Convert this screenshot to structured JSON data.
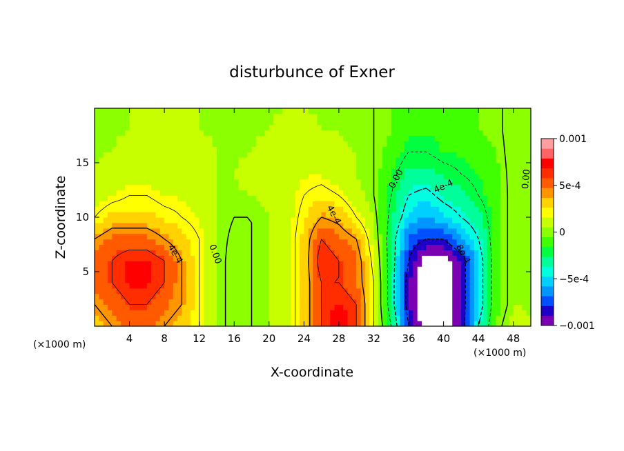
{
  "chart_data": {
    "type": "heatmap",
    "title": "disturbunce of Exner",
    "xlabel": "X-coordinate",
    "ylabel": "Z-coordinate",
    "xunit_left": "(×1000 m)",
    "xunit_right": "(×1000 m)",
    "xlim": [
      0,
      50
    ],
    "ylim": [
      0,
      20
    ],
    "xticks": [
      4,
      8,
      12,
      16,
      20,
      24,
      28,
      32,
      36,
      40,
      44,
      48
    ],
    "yticks": [
      5,
      10,
      15
    ],
    "colorbar": {
      "range": [
        -0.001,
        0.001
      ],
      "tick_values": [
        0.001,
        0.0005,
        0,
        -0.0005,
        -0.001
      ],
      "tick_labels": [
        "0.001",
        "5e-4",
        "0",
        "−5e-4",
        "−0.001"
      ],
      "colors": [
        "#7b00b4",
        "#1e00c8",
        "#0050ff",
        "#0096ff",
        "#00d0ff",
        "#00ffe0",
        "#00ff9a",
        "#00ff40",
        "#40ff00",
        "#8cff00",
        "#c8ff00",
        "#ffff00",
        "#ffd200",
        "#ff9600",
        "#ff5a00",
        "#ff2d00",
        "#ff0000",
        "#ff6464",
        "#ff9ea0"
      ]
    },
    "contour_labels": [
      {
        "text": "4e-4",
        "x": 9.2,
        "z": 6.6,
        "angle": 60
      },
      {
        "text": "0.00",
        "x": 13.8,
        "z": 6.6,
        "angle": 70
      },
      {
        "text": "4e-4",
        "x": 27.4,
        "z": 10.2,
        "angle": 62
      },
      {
        "text": "0.00",
        "x": 34.6,
        "z": 13.5,
        "angle": -62
      },
      {
        "text": "4e-4",
        "x": 40.0,
        "z": 12.8,
        "angle": -25
      },
      {
        "text": "8e-4",
        "x": 42.2,
        "z": 6.6,
        "angle": 62
      },
      {
        "text": "0.00",
        "x": 49.5,
        "z": 13.5,
        "angle": -85
      }
    ],
    "data": {
      "x": [
        0,
        2,
        4,
        6,
        8,
        10,
        12,
        14,
        16,
        18,
        20,
        22,
        24,
        26,
        28,
        30,
        32,
        34,
        36,
        38,
        40,
        42,
        44,
        46,
        48,
        50
      ],
      "z": [
        0,
        2,
        4,
        6,
        8,
        10,
        12,
        14,
        16,
        18,
        20
      ],
      "values_e4": [
        [
          3,
          4,
          5,
          5,
          4,
          3,
          2,
          0.5,
          -0.5,
          0,
          0.5,
          1,
          3,
          6,
          8,
          6,
          2,
          -2,
          -8,
          -11,
          -11,
          -9,
          -4,
          -0.5,
          1,
          0.5
        ],
        [
          4,
          5,
          6,
          6,
          5,
          4,
          2,
          0.5,
          -0.5,
          0,
          0.5,
          1,
          3,
          6,
          7,
          6,
          2,
          -3,
          -9,
          -11,
          -11,
          -9,
          -5,
          -1,
          0.5,
          0.5
        ],
        [
          5,
          6,
          7,
          7,
          6,
          4,
          2,
          0.5,
          -0.5,
          0,
          0.5,
          1,
          3,
          6,
          6,
          5,
          2,
          -3,
          -9,
          -11,
          -11,
          -9,
          -5,
          -1,
          0.5,
          0.5
        ],
        [
          5,
          6,
          7,
          7,
          6,
          4,
          2,
          0.5,
          -0.5,
          0,
          0.5,
          1,
          3,
          7,
          6,
          5,
          1.5,
          -3,
          -8,
          -11,
          -11,
          -9,
          -5,
          -1,
          0.5,
          0.5
        ],
        [
          4,
          5,
          5,
          5,
          4,
          3,
          2,
          0.5,
          -0.3,
          0,
          0.5,
          1,
          3,
          6,
          5,
          4,
          1,
          -3,
          -7,
          -8,
          -8,
          -6,
          -4,
          -1,
          0.5,
          0.5
        ],
        [
          2,
          3,
          3,
          3,
          2.5,
          2,
          1.5,
          0.5,
          0,
          0,
          0.5,
          1,
          2.5,
          4,
          3.5,
          2,
          0.5,
          -2.5,
          -5,
          -6,
          -5,
          -4,
          -3,
          -1,
          0.5,
          0.5
        ],
        [
          1,
          1.5,
          2,
          2,
          1.5,
          1.5,
          1,
          0.5,
          0.5,
          0.5,
          1,
          1,
          2,
          2.5,
          2,
          1,
          0,
          -2,
          -4,
          -4.5,
          -3.5,
          -3,
          -2,
          -1,
          0.5,
          0.5
        ],
        [
          0.5,
          1,
          1,
          1.2,
          1,
          1,
          0.8,
          0.5,
          0.5,
          0.8,
          1,
          1,
          1.5,
          1.5,
          1,
          0.5,
          0,
          -1.5,
          -3,
          -3,
          -2.5,
          -2,
          -1.5,
          -0.8,
          0.5,
          0.5
        ],
        [
          0.5,
          0.5,
          0.8,
          1,
          1,
          0.8,
          0.8,
          0.5,
          0.5,
          0.5,
          0.8,
          1,
          1,
          1,
          0.8,
          0.5,
          0,
          -1,
          -2,
          -2,
          -1.5,
          -1.5,
          -1,
          -0.5,
          0.5,
          0.5
        ],
        [
          0.5,
          0.5,
          0.5,
          0.8,
          1,
          0.8,
          0.5,
          0.5,
          0.5,
          0.5,
          0.5,
          0.8,
          0.8,
          0.5,
          0.5,
          0.3,
          0,
          -0.5,
          -1.5,
          -1.5,
          -1.5,
          -1,
          -0.5,
          -0.3,
          0.5,
          0.5
        ],
        [
          0.5,
          0.5,
          0.5,
          0.8,
          1,
          0.8,
          0.5,
          0.5,
          0.5,
          0.5,
          0.5,
          0.5,
          0.5,
          0.5,
          0.5,
          0.3,
          0,
          -0.5,
          -1,
          -1.5,
          -1.5,
          -1,
          -0.5,
          -0.3,
          0.5,
          0.5
        ]
      ]
    }
  }
}
